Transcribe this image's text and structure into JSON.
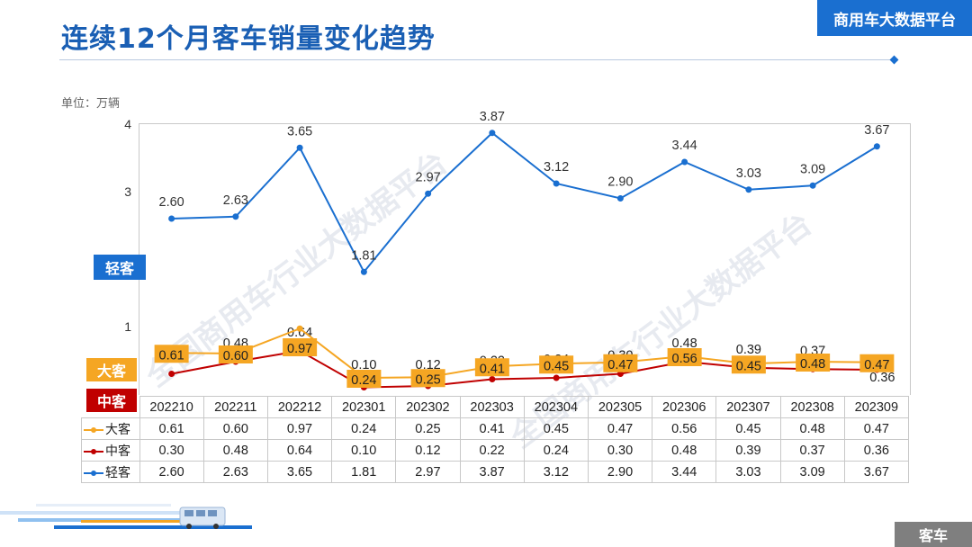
{
  "header": {
    "title": "连续12个月客车销量变化趋势",
    "brand": "商用车大数据平台",
    "unit": "单位：万辆",
    "bottom_tag": "客车",
    "watermark": "全国商用车行业大数据平台"
  },
  "chart_data": {
    "type": "line",
    "title": "连续12个月客车销量变化趋势",
    "ylabel": "单位：万辆",
    "ylim": [
      0,
      4
    ],
    "yticks": [
      "4",
      "3",
      "1"
    ],
    "categories": [
      "202210",
      "202211",
      "202212",
      "202301",
      "202302",
      "202303",
      "202304",
      "202305",
      "202306",
      "202307",
      "202308",
      "202309"
    ],
    "series": [
      {
        "key": "big",
        "name": "大客",
        "color": "#f5a623",
        "values": [
          0.61,
          0.6,
          0.97,
          0.24,
          0.25,
          0.41,
          0.45,
          0.47,
          0.56,
          0.45,
          0.48,
          0.47
        ],
        "labels": [
          "0.61",
          "0.60",
          "0.97",
          "0.24",
          "0.25",
          "0.41",
          "0.45",
          "0.47",
          "0.56",
          "0.45",
          "0.48",
          "0.47"
        ]
      },
      {
        "key": "mid",
        "name": "中客",
        "color": "#c00000",
        "values": [
          0.3,
          0.48,
          0.64,
          0.1,
          0.12,
          0.22,
          0.24,
          0.3,
          0.48,
          0.39,
          0.37,
          0.36
        ],
        "labels": [
          "0.30",
          "0.48",
          "0.64",
          "0.10",
          "0.12",
          "0.22",
          "0.24",
          "0.30",
          "0.48",
          "0.39",
          "0.37",
          "0.36"
        ]
      },
      {
        "key": "light",
        "name": "轻客",
        "color": "#1a6fd0",
        "values": [
          2.6,
          2.63,
          3.65,
          1.81,
          2.97,
          3.87,
          3.12,
          2.9,
          3.44,
          3.03,
          3.09,
          3.67
        ],
        "labels": [
          "2.60",
          "2.63",
          "3.65",
          "1.81",
          "2.97",
          "3.87",
          "3.12",
          "2.90",
          "3.44",
          "3.03",
          "3.09",
          "3.67"
        ]
      }
    ]
  }
}
